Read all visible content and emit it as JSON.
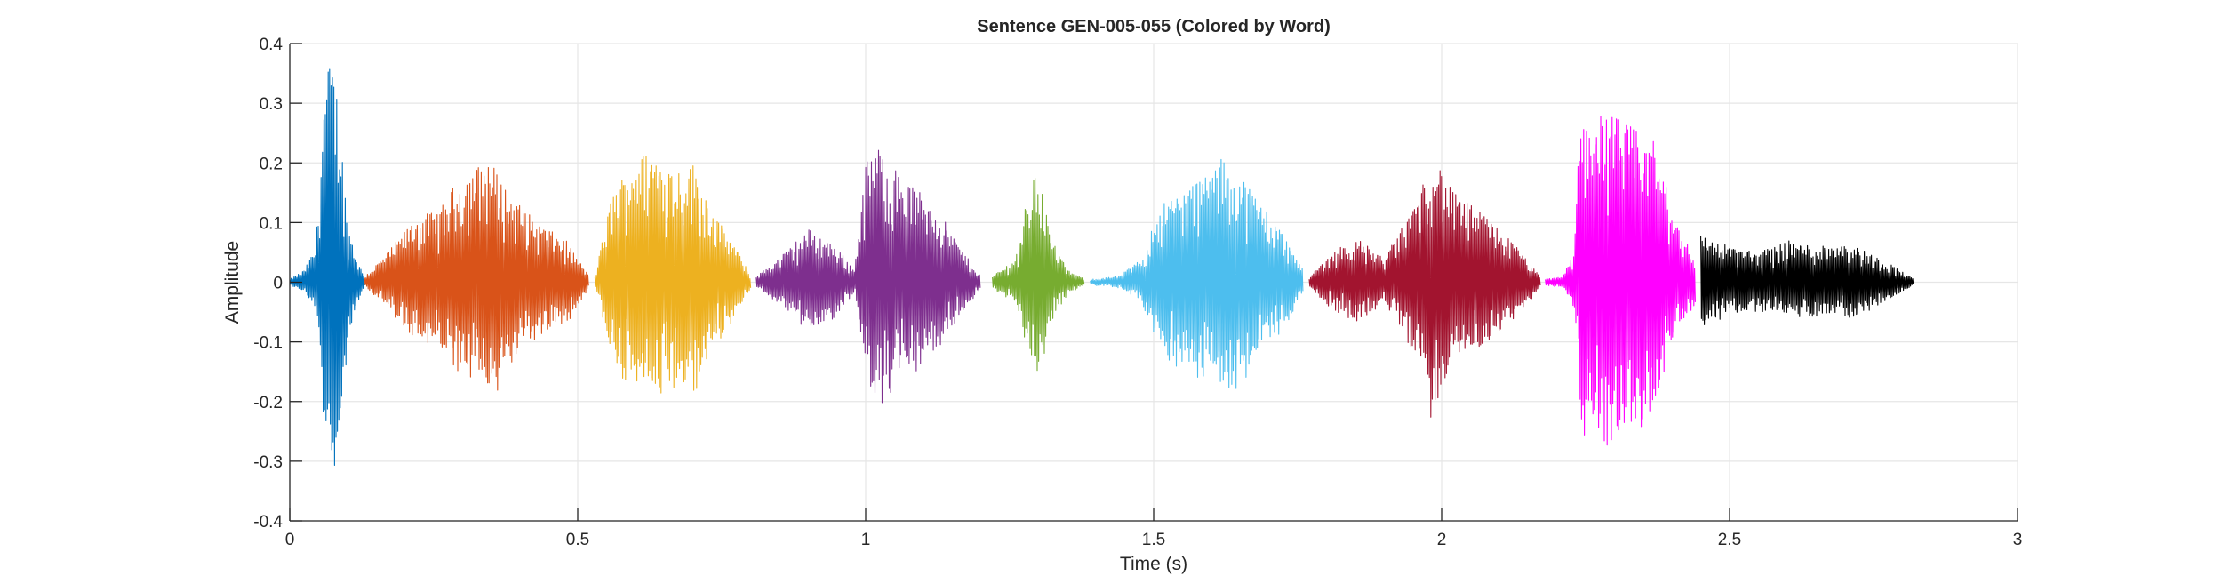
{
  "chart_data": {
    "type": "line",
    "title": "Sentence GEN-005-055 (Colored by Word)",
    "xlabel": "Time (s)",
    "ylabel": "Amplitude",
    "xlim": [
      0,
      3
    ],
    "ylim": [
      -0.4,
      0.4
    ],
    "xticks": [
      0,
      0.5,
      1,
      1.5,
      2,
      2.5,
      3
    ],
    "xtick_labels": [
      "0",
      "0.5",
      "1",
      "1.5",
      "2",
      "2.5",
      "3"
    ],
    "yticks": [
      -0.4,
      -0.3,
      -0.2,
      -0.1,
      0,
      0.1,
      0.2,
      0.3,
      0.4
    ],
    "ytick_labels": [
      "-0.4",
      "-0.3",
      "-0.2",
      "-0.1",
      "0",
      "0.1",
      "0.2",
      "0.3",
      "0.4"
    ],
    "grid": true,
    "legend": "none",
    "series": [
      {
        "color": "#0072BD",
        "start": 0.0,
        "end": 0.13,
        "env": [
          [
            0.0,
            0.005
          ],
          [
            0.025,
            0.02
          ],
          [
            0.045,
            0.06
          ],
          [
            0.06,
            0.33
          ],
          [
            0.072,
            0.38
          ],
          [
            0.085,
            0.3
          ],
          [
            0.1,
            0.1
          ],
          [
            0.12,
            0.03
          ],
          [
            0.13,
            0.01
          ]
        ]
      },
      {
        "color": "#D95319",
        "start": 0.13,
        "end": 0.52,
        "env": [
          [
            0.13,
            0.01
          ],
          [
            0.17,
            0.05
          ],
          [
            0.22,
            0.11
          ],
          [
            0.26,
            0.12
          ],
          [
            0.29,
            0.17
          ],
          [
            0.32,
            0.19
          ],
          [
            0.345,
            0.21
          ],
          [
            0.38,
            0.15
          ],
          [
            0.43,
            0.1
          ],
          [
            0.48,
            0.07
          ],
          [
            0.52,
            0.01
          ]
        ]
      },
      {
        "color": "#EDB120",
        "start": 0.53,
        "end": 0.8,
        "env": [
          [
            0.53,
            0.01
          ],
          [
            0.56,
            0.15
          ],
          [
            0.6,
            0.21
          ],
          [
            0.63,
            0.22
          ],
          [
            0.67,
            0.19
          ],
          [
            0.7,
            0.2
          ],
          [
            0.74,
            0.11
          ],
          [
            0.78,
            0.05
          ],
          [
            0.8,
            0.01
          ]
        ]
      },
      {
        "color": "#7E2F8E",
        "start": 0.81,
        "end": 1.2,
        "env": [
          [
            0.81,
            0.01
          ],
          [
            0.86,
            0.05
          ],
          [
            0.9,
            0.09
          ],
          [
            0.95,
            0.06
          ],
          [
            0.98,
            0.02
          ],
          [
            1.0,
            0.2
          ],
          [
            1.02,
            0.23
          ],
          [
            1.06,
            0.18
          ],
          [
            1.12,
            0.13
          ],
          [
            1.17,
            0.05
          ],
          [
            1.2,
            0.01
          ]
        ]
      },
      {
        "color": "#77AC30",
        "start": 1.22,
        "end": 1.38,
        "env": [
          [
            1.22,
            0.01
          ],
          [
            1.26,
            0.04
          ],
          [
            1.28,
            0.14
          ],
          [
            1.3,
            0.2
          ],
          [
            1.32,
            0.08
          ],
          [
            1.35,
            0.02
          ],
          [
            1.38,
            0.005
          ]
        ]
      },
      {
        "color": "#4DBEEE",
        "start": 1.39,
        "end": 1.76,
        "env": [
          [
            1.39,
            0.005
          ],
          [
            1.44,
            0.01
          ],
          [
            1.48,
            0.04
          ],
          [
            1.51,
            0.13
          ],
          [
            1.56,
            0.16
          ],
          [
            1.6,
            0.19
          ],
          [
            1.62,
            0.21
          ],
          [
            1.66,
            0.17
          ],
          [
            1.72,
            0.09
          ],
          [
            1.76,
            0.02
          ]
        ]
      },
      {
        "color": "#A2142F",
        "start": 1.77,
        "end": 2.17,
        "env": [
          [
            1.77,
            0.01
          ],
          [
            1.82,
            0.06
          ],
          [
            1.86,
            0.07
          ],
          [
            1.9,
            0.04
          ],
          [
            1.93,
            0.09
          ],
          [
            1.97,
            0.17
          ],
          [
            1.98,
            0.23
          ],
          [
            2.02,
            0.15
          ],
          [
            2.08,
            0.11
          ],
          [
            2.13,
            0.06
          ],
          [
            2.17,
            0.01
          ]
        ]
      },
      {
        "color": "#FF00FF",
        "start": 2.18,
        "end": 2.44,
        "env": [
          [
            2.18,
            0.005
          ],
          [
            2.21,
            0.01
          ],
          [
            2.23,
            0.05
          ],
          [
            2.24,
            0.27
          ],
          [
            2.26,
            0.29
          ],
          [
            2.3,
            0.28
          ],
          [
            2.33,
            0.26
          ],
          [
            2.37,
            0.24
          ],
          [
            2.4,
            0.12
          ],
          [
            2.44,
            0.04
          ]
        ]
      },
      {
        "color": "#000000",
        "start": 2.45,
        "end": 2.82,
        "env": [
          [
            2.45,
            0.08
          ],
          [
            2.5,
            0.06
          ],
          [
            2.55,
            0.05
          ],
          [
            2.6,
            0.07
          ],
          [
            2.65,
            0.06
          ],
          [
            2.7,
            0.07
          ],
          [
            2.74,
            0.05
          ],
          [
            2.78,
            0.03
          ],
          [
            2.82,
            0.005
          ]
        ]
      }
    ]
  }
}
